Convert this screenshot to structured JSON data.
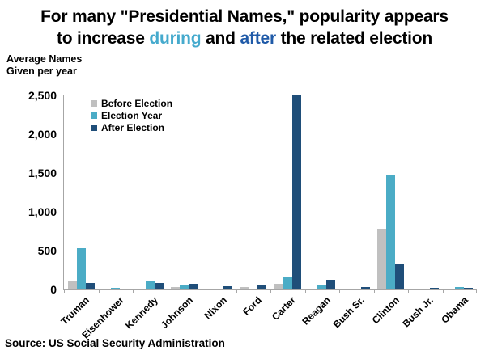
{
  "title": {
    "line1": "For many \"Presidential Names,\" popularity appears",
    "line2_pre": "to increase ",
    "during_word": "during",
    "line2_mid": " and ",
    "after_word": "after",
    "line2_post": " the related election",
    "during_color": "#45aacd",
    "after_color": "#1f5aa8"
  },
  "y_axis": {
    "label_line1": "Average Names",
    "label_line2": "Given per year",
    "tick_labels": [
      "2,500",
      "2,000",
      "1,500",
      "1,000",
      "500",
      "0"
    ]
  },
  "legend": {
    "items": [
      {
        "label": "Before Election",
        "color": "#c0c0c0"
      },
      {
        "label": "Election Year",
        "color": "#4bacc6"
      },
      {
        "label": "After Election",
        "color": "#1f4e79"
      }
    ]
  },
  "chart_data": {
    "type": "bar",
    "title": "For many \"Presidential Names,\" popularity appears to increase during and after the related election",
    "ylabel": "Average Names Given per year",
    "xlabel": "",
    "ylim": [
      0,
      2500
    ],
    "ytick_interval": 500,
    "grid": false,
    "legend_position": "upper-left-inside",
    "categories": [
      "Truman",
      "Eisenhower",
      "Kennedy",
      "Johnson",
      "Nixon",
      "Ford",
      "Carter",
      "Reagan",
      "Bush Sr.",
      "Clinton",
      "Bush Jr.",
      "Obama"
    ],
    "series": [
      {
        "name": "Before Election",
        "color": "#c0c0c0",
        "values": [
          110,
          5,
          10,
          30,
          15,
          35,
          75,
          10,
          15,
          780,
          15,
          5
        ]
      },
      {
        "name": "Election Year",
        "color": "#4bacc6",
        "values": [
          530,
          20,
          105,
          50,
          5,
          10,
          155,
          50,
          5,
          1470,
          5,
          35
        ]
      },
      {
        "name": "After Election",
        "color": "#1f4e79",
        "values": [
          80,
          5,
          80,
          75,
          40,
          50,
          2500,
          125,
          30,
          320,
          25,
          20
        ]
      }
    ]
  },
  "source": "Source: US Social Security Administration"
}
